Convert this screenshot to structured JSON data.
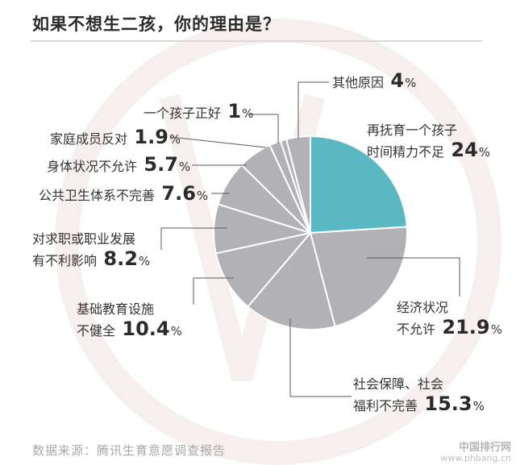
{
  "title": "如果不想生二孩，你的理由是？",
  "source": "数据来源：腾讯生育意愿调查报告",
  "watermark": {
    "line1": "中国排行网",
    "line2": "www.phbang.cn"
  },
  "colors": {
    "highlight": "#5ab8c2",
    "slice": "#b1b1b6",
    "divider": "#ffffff",
    "leader": "#5a5a5a"
  },
  "chart_data": {
    "type": "pie",
    "title": "如果不想生二孩，你的理由是？",
    "unit": "%",
    "slices": [
      {
        "id": "childcare-time",
        "label_lines": [
          "再抚育一个孩子",
          "时间精力不足"
        ],
        "value": 24,
        "value_text": "24",
        "highlight": true
      },
      {
        "id": "economic",
        "label_lines": [
          "经济状况",
          "不允许"
        ],
        "value": 21.9,
        "value_text": "21.9"
      },
      {
        "id": "welfare",
        "label_lines": [
          "社会保障、社会",
          "福利不完善"
        ],
        "value": 15.3,
        "value_text": "15.3"
      },
      {
        "id": "education",
        "label_lines": [
          "基础教育设施",
          "不健全"
        ],
        "value": 10.4,
        "value_text": "10.4"
      },
      {
        "id": "career",
        "label_lines": [
          "对求职或职业发展",
          "有不利影响"
        ],
        "value": 8.2,
        "value_text": "8.2"
      },
      {
        "id": "public-health",
        "label_lines": [
          "公共卫生体系不完善"
        ],
        "value": 7.6,
        "value_text": "7.6"
      },
      {
        "id": "health",
        "label_lines": [
          "身体状况不允许"
        ],
        "value": 5.7,
        "value_text": "5.7"
      },
      {
        "id": "family",
        "label_lines": [
          "家庭成员反对"
        ],
        "value": 1.9,
        "value_text": "1.9"
      },
      {
        "id": "one-child-good",
        "label_lines": [
          "一个孩子正好"
        ],
        "value": 1,
        "value_text": "1"
      },
      {
        "id": "other",
        "label_lines": [
          "其他原因"
        ],
        "value": 4,
        "value_text": "4"
      }
    ]
  }
}
